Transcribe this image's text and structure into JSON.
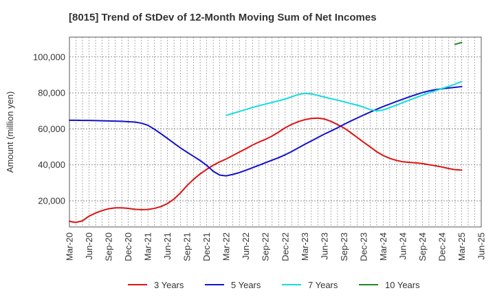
{
  "chart_data": {
    "type": "line",
    "title": "[8015]  Trend of StDev of 12-Month Moving Sum of Net Incomes",
    "ylabel": "Amount (million yen)",
    "xlabel": "",
    "x_ticks": [
      "Mar-20",
      "Jun-20",
      "Sep-20",
      "Dec-20",
      "Mar-21",
      "Jun-21",
      "Sep-21",
      "Dec-21",
      "Mar-22",
      "Jun-22",
      "Sep-22",
      "Dec-22",
      "Mar-23",
      "Jun-23",
      "Sep-23",
      "Dec-23",
      "Mar-24",
      "Jun-24",
      "Sep-24",
      "Dec-24",
      "Mar-25",
      "Jun-25"
    ],
    "y_ticks": [
      20000,
      40000,
      60000,
      80000,
      100000
    ],
    "y_tick_labels": [
      "20,000",
      "40,000",
      "60,000",
      "80,000",
      "100,000"
    ],
    "ylim": [
      5500,
      111000
    ],
    "grid": true,
    "legend_position": "bottom",
    "series": [
      {
        "name": "3 Years",
        "color": "#dd1111",
        "x": [
          "2020-03",
          "2020-04",
          "2020-05",
          "2020-06",
          "2020-07",
          "2020-08",
          "2020-09",
          "2020-10",
          "2020-11",
          "2020-12",
          "2021-01",
          "2021-02",
          "2021-03",
          "2021-04",
          "2021-05",
          "2021-06",
          "2021-07",
          "2021-08",
          "2021-09",
          "2021-10",
          "2021-11",
          "2021-12",
          "2022-01",
          "2022-02",
          "2022-03",
          "2022-04",
          "2022-05",
          "2022-06",
          "2022-07",
          "2022-08",
          "2022-09",
          "2022-10",
          "2022-11",
          "2022-12",
          "2023-01",
          "2023-02",
          "2023-03",
          "2023-04",
          "2023-05",
          "2023-06",
          "2023-07",
          "2023-08",
          "2023-09",
          "2023-10",
          "2023-11",
          "2023-12",
          "2024-01",
          "2024-02",
          "2024-03",
          "2024-04",
          "2024-05",
          "2024-06",
          "2024-07",
          "2024-08",
          "2024-09",
          "2024-10",
          "2024-11",
          "2024-12",
          "2025-01",
          "2025-02",
          "2025-03"
        ],
        "values": [
          8600,
          8000,
          8900,
          11500,
          13200,
          14600,
          15600,
          16100,
          16100,
          15800,
          15300,
          15100,
          15200,
          15800,
          16800,
          18500,
          21000,
          24500,
          28500,
          32000,
          35000,
          37500,
          39800,
          41700,
          43300,
          45200,
          47100,
          49000,
          51000,
          52700,
          54200,
          56000,
          58200,
          60600,
          62500,
          64000,
          65100,
          65800,
          66000,
          65500,
          64200,
          62400,
          60500,
          58000,
          55300,
          52600,
          50000,
          47300,
          45200,
          43600,
          42500,
          41700,
          41400,
          41100,
          40700,
          40100,
          39500,
          38800,
          38000,
          37300,
          37100
        ]
      },
      {
        "name": "5 Years",
        "color": "#1111cc",
        "x": [
          "2020-03",
          "2020-04",
          "2020-05",
          "2020-06",
          "2020-07",
          "2020-08",
          "2020-09",
          "2020-10",
          "2020-11",
          "2020-12",
          "2021-01",
          "2021-02",
          "2021-03",
          "2021-04",
          "2021-05",
          "2021-06",
          "2021-07",
          "2021-08",
          "2021-09",
          "2021-10",
          "2021-11",
          "2021-12",
          "2022-01",
          "2022-02",
          "2022-03",
          "2022-04",
          "2022-05",
          "2022-06",
          "2022-07",
          "2022-08",
          "2022-09",
          "2022-10",
          "2022-11",
          "2022-12",
          "2023-01",
          "2023-02",
          "2023-03",
          "2023-04",
          "2023-05",
          "2023-06",
          "2023-07",
          "2023-08",
          "2023-09",
          "2023-10",
          "2023-11",
          "2023-12",
          "2024-01",
          "2024-02",
          "2024-03",
          "2024-04",
          "2024-05",
          "2024-06",
          "2024-07",
          "2024-08",
          "2024-09",
          "2024-10",
          "2024-11",
          "2024-12",
          "2025-01",
          "2025-02",
          "2025-03"
        ],
        "values": [
          64800,
          64800,
          64700,
          64700,
          64600,
          64500,
          64400,
          64300,
          64200,
          64000,
          63800,
          63200,
          62000,
          59800,
          57300,
          54700,
          52000,
          49400,
          47000,
          44700,
          42400,
          39700,
          36400,
          34300,
          33900,
          34700,
          35700,
          37000,
          38400,
          39800,
          41200,
          42600,
          44000,
          45600,
          47400,
          49400,
          51400,
          53300,
          55200,
          57100,
          58800,
          60600,
          62500,
          64300,
          66000,
          67700,
          69300,
          70900,
          72400,
          73800,
          75200,
          76500,
          77800,
          79000,
          80200,
          81100,
          81800,
          82300,
          82700,
          83100,
          83500
        ]
      },
      {
        "name": "7 Years",
        "color": "#11dddd",
        "x": [
          "2022-03",
          "2022-04",
          "2022-05",
          "2022-06",
          "2022-07",
          "2022-08",
          "2022-09",
          "2022-10",
          "2022-11",
          "2022-12",
          "2023-01",
          "2023-02",
          "2023-03",
          "2023-04",
          "2023-05",
          "2023-06",
          "2023-07",
          "2023-08",
          "2023-09",
          "2023-10",
          "2023-11",
          "2023-12",
          "2024-01",
          "2024-02",
          "2024-03",
          "2024-04",
          "2024-05",
          "2024-06",
          "2024-07",
          "2024-08",
          "2024-09",
          "2024-10",
          "2024-11",
          "2024-12",
          "2025-01",
          "2025-02",
          "2025-03"
        ],
        "values": [
          67600,
          68600,
          69700,
          70800,
          71900,
          72900,
          73800,
          74700,
          75600,
          76600,
          77800,
          79100,
          79700,
          79400,
          78600,
          77700,
          76800,
          76000,
          75100,
          74100,
          73200,
          72100,
          70700,
          70000,
          70500,
          71800,
          73200,
          74600,
          76000,
          77400,
          78700,
          80000,
          81200,
          82400,
          83600,
          84900,
          86300
        ]
      },
      {
        "name": "10 Years",
        "color": "#228822",
        "x": [
          "2025-02",
          "2025-03"
        ],
        "values": [
          107000,
          108000
        ]
      }
    ]
  }
}
